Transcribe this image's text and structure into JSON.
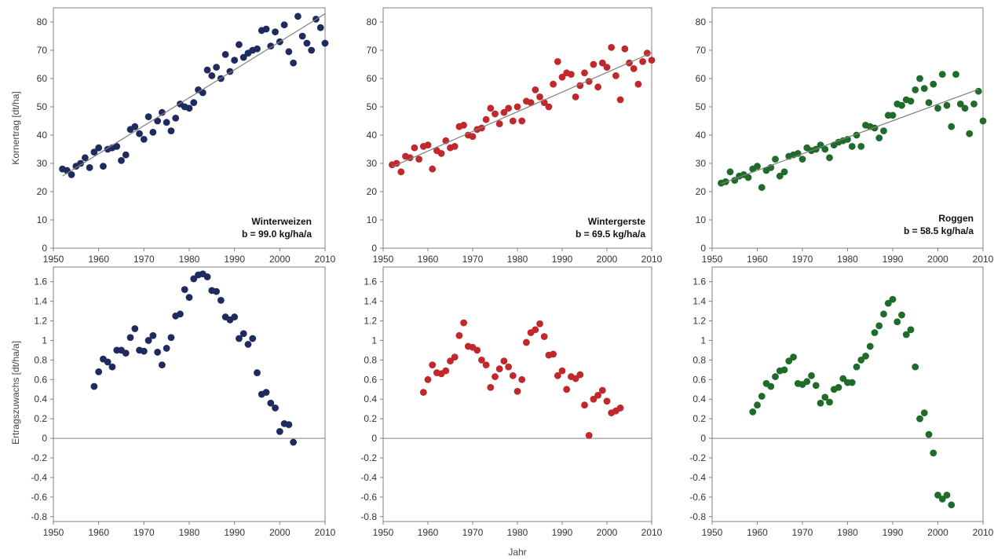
{
  "figure": {
    "ylabel_top": "Kornertrag [dt/ha]",
    "ylabel_bottom": "Ertragszuwachs [dt/ha/a]",
    "xlabel": "Jahr"
  },
  "colors": {
    "winterweizen": "#1f2a5e",
    "wintergerste": "#c0282b",
    "roggen": "#1e6b2a",
    "trend": "#7f7f7f",
    "axis": "#808080"
  },
  "chart_data": [
    {
      "id": "ww-yield",
      "type": "scatter",
      "series_label": "Winterweizen",
      "slope_label": "b = 99.0 kg/ha/a",
      "xlim": [
        1950,
        2010
      ],
      "ylim": [
        0,
        85
      ],
      "xticks": [
        1950,
        1960,
        1970,
        1980,
        1990,
        2000,
        2010
      ],
      "yticks": [
        0,
        10,
        20,
        30,
        40,
        50,
        60,
        70,
        80
      ],
      "trend": [
        [
          1952,
          25.5
        ],
        [
          2010,
          82.9
        ]
      ],
      "points": [
        [
          1952,
          28
        ],
        [
          1953,
          27.5
        ],
        [
          1954,
          26
        ],
        [
          1955,
          29
        ],
        [
          1956,
          30
        ],
        [
          1957,
          32
        ],
        [
          1958,
          28.5
        ],
        [
          1959,
          34
        ],
        [
          1960,
          35.5
        ],
        [
          1961,
          29
        ],
        [
          1962,
          35
        ],
        [
          1963,
          35.5
        ],
        [
          1964,
          36
        ],
        [
          1965,
          31
        ],
        [
          1966,
          33
        ],
        [
          1967,
          42
        ],
        [
          1968,
          43
        ],
        [
          1969,
          40.5
        ],
        [
          1970,
          38.5
        ],
        [
          1971,
          46.5
        ],
        [
          1972,
          41
        ],
        [
          1973,
          45
        ],
        [
          1974,
          48
        ],
        [
          1975,
          44.5
        ],
        [
          1976,
          41.5
        ],
        [
          1977,
          46
        ],
        [
          1978,
          51
        ],
        [
          1979,
          50
        ],
        [
          1980,
          49.5
        ],
        [
          1981,
          51.5
        ],
        [
          1982,
          56
        ],
        [
          1983,
          55
        ],
        [
          1984,
          63
        ],
        [
          1985,
          61
        ],
        [
          1986,
          64
        ],
        [
          1987,
          60
        ],
        [
          1988,
          68.5
        ],
        [
          1989,
          62.5
        ],
        [
          1990,
          66.5
        ],
        [
          1991,
          72
        ],
        [
          1992,
          67.5
        ],
        [
          1993,
          69
        ],
        [
          1994,
          70
        ],
        [
          1995,
          70.5
        ],
        [
          1996,
          77
        ],
        [
          1997,
          77.5
        ],
        [
          1998,
          71.5
        ],
        [
          1999,
          76.5
        ],
        [
          2000,
          73
        ],
        [
          2001,
          79
        ],
        [
          2002,
          69.5
        ],
        [
          2003,
          65.5
        ],
        [
          2004,
          82
        ],
        [
          2005,
          75
        ],
        [
          2006,
          72.5
        ],
        [
          2007,
          70
        ],
        [
          2008,
          81
        ],
        [
          2009,
          78
        ],
        [
          2010,
          72.5
        ]
      ]
    },
    {
      "id": "wg-yield",
      "type": "scatter",
      "series_label": "Wintergerste",
      "slope_label": "b = 69.5 kg/ha/a",
      "xlim": [
        1950,
        2010
      ],
      "ylim": [
        0,
        85
      ],
      "xticks": [
        1950,
        1960,
        1970,
        1980,
        1990,
        2000,
        2010
      ],
      "yticks": [
        0,
        10,
        20,
        30,
        40,
        50,
        60,
        70,
        80
      ],
      "trend": [
        [
          1952,
          28.8
        ],
        [
          2010,
          69.1
        ]
      ],
      "points": [
        [
          1952,
          29.5
        ],
        [
          1953,
          30
        ],
        [
          1954,
          27
        ],
        [
          1955,
          32.5
        ],
        [
          1956,
          32
        ],
        [
          1957,
          35.5
        ],
        [
          1958,
          31.5
        ],
        [
          1959,
          36
        ],
        [
          1960,
          36.5
        ],
        [
          1961,
          28
        ],
        [
          1962,
          34.5
        ],
        [
          1963,
          33.5
        ],
        [
          1964,
          38
        ],
        [
          1965,
          35.5
        ],
        [
          1966,
          36
        ],
        [
          1967,
          43
        ],
        [
          1968,
          43.5
        ],
        [
          1969,
          40
        ],
        [
          1970,
          39.5
        ],
        [
          1971,
          42
        ],
        [
          1972,
          42.5
        ],
        [
          1973,
          45.5
        ],
        [
          1974,
          49.5
        ],
        [
          1975,
          47.5
        ],
        [
          1976,
          44
        ],
        [
          1977,
          48
        ],
        [
          1978,
          49.5
        ],
        [
          1979,
          45
        ],
        [
          1980,
          50
        ],
        [
          1981,
          45
        ],
        [
          1982,
          52
        ],
        [
          1983,
          51.5
        ],
        [
          1984,
          56
        ],
        [
          1985,
          53.5
        ],
        [
          1986,
          51.5
        ],
        [
          1987,
          50
        ],
        [
          1988,
          58
        ],
        [
          1989,
          66
        ],
        [
          1990,
          60.5
        ],
        [
          1991,
          62
        ],
        [
          1992,
          61.5
        ],
        [
          1993,
          53.5
        ],
        [
          1994,
          57.5
        ],
        [
          1995,
          62
        ],
        [
          1996,
          59
        ],
        [
          1997,
          65
        ],
        [
          1998,
          57
        ],
        [
          1999,
          65.5
        ],
        [
          2000,
          64
        ],
        [
          2001,
          71
        ],
        [
          2002,
          61
        ],
        [
          2003,
          52.5
        ],
        [
          2004,
          70.5
        ],
        [
          2005,
          65.5
        ],
        [
          2006,
          63.5
        ],
        [
          2007,
          58
        ],
        [
          2008,
          66
        ],
        [
          2009,
          69
        ],
        [
          2010,
          66.5
        ]
      ]
    },
    {
      "id": "ro-yield",
      "type": "scatter",
      "series_label": "Roggen",
      "slope_label": "b = 58.5 kg/ha/a",
      "xlim": [
        1950,
        2010
      ],
      "ylim": [
        0,
        85
      ],
      "xticks": [
        1950,
        1960,
        1970,
        1980,
        1990,
        2000,
        2010
      ],
      "yticks": [
        0,
        10,
        20,
        30,
        40,
        50,
        60,
        70,
        80
      ],
      "trend": [
        [
          1952,
          22.8
        ],
        [
          2009,
          56.2
        ]
      ],
      "points": [
        [
          1952,
          23
        ],
        [
          1953,
          23.5
        ],
        [
          1954,
          27
        ],
        [
          1955,
          24
        ],
        [
          1956,
          25.5
        ],
        [
          1957,
          26
        ],
        [
          1958,
          25
        ],
        [
          1959,
          28
        ],
        [
          1960,
          29
        ],
        [
          1961,
          21.5
        ],
        [
          1962,
          27.5
        ],
        [
          1963,
          28.5
        ],
        [
          1964,
          31.5
        ],
        [
          1965,
          25.5
        ],
        [
          1966,
          27
        ],
        [
          1967,
          32.5
        ],
        [
          1968,
          33
        ],
        [
          1969,
          33.5
        ],
        [
          1970,
          31.5
        ],
        [
          1971,
          35.5
        ],
        [
          1972,
          34.5
        ],
        [
          1973,
          35
        ],
        [
          1974,
          36.5
        ],
        [
          1975,
          35
        ],
        [
          1976,
          32
        ],
        [
          1977,
          36.5
        ],
        [
          1978,
          37.5
        ],
        [
          1979,
          38
        ],
        [
          1980,
          38.5
        ],
        [
          1981,
          36
        ],
        [
          1982,
          40
        ],
        [
          1983,
          36
        ],
        [
          1984,
          43.5
        ],
        [
          1985,
          43
        ],
        [
          1986,
          42.5
        ],
        [
          1987,
          39
        ],
        [
          1988,
          41.5
        ],
        [
          1989,
          47
        ],
        [
          1990,
          47
        ],
        [
          1991,
          51
        ],
        [
          1992,
          50.5
        ],
        [
          1993,
          52.5
        ],
        [
          1994,
          52
        ],
        [
          1995,
          56
        ],
        [
          1996,
          60
        ],
        [
          1997,
          56.5
        ],
        [
          1998,
          51.5
        ],
        [
          1999,
          58
        ],
        [
          2000,
          49.5
        ],
        [
          2001,
          61.5
        ],
        [
          2002,
          50.5
        ],
        [
          2003,
          43
        ],
        [
          2004,
          61.5
        ],
        [
          2005,
          51
        ],
        [
          2006,
          49.5
        ],
        [
          2007,
          40.5
        ],
        [
          2008,
          51
        ],
        [
          2009,
          55.5
        ],
        [
          2010,
          45
        ]
      ]
    },
    {
      "id": "ww-growth",
      "type": "scatter",
      "xlim": [
        1950,
        2010
      ],
      "ylim": [
        -0.85,
        1.75
      ],
      "xticks": [
        1950,
        1960,
        1970,
        1980,
        1990,
        2000,
        2010
      ],
      "yticks": [
        -0.8,
        -0.6,
        -0.4,
        -0.2,
        0,
        0.2,
        0.4,
        0.6,
        0.8,
        1,
        1.2,
        1.4,
        1.6
      ],
      "points": [
        [
          1959,
          0.53
        ],
        [
          1960,
          0.68
        ],
        [
          1961,
          0.81
        ],
        [
          1962,
          0.78
        ],
        [
          1963,
          0.73
        ],
        [
          1964,
          0.9
        ],
        [
          1965,
          0.9
        ],
        [
          1966,
          0.87
        ],
        [
          1967,
          1.03
        ],
        [
          1968,
          1.12
        ],
        [
          1969,
          0.9
        ],
        [
          1970,
          0.89
        ],
        [
          1971,
          1
        ],
        [
          1972,
          1.05
        ],
        [
          1973,
          0.88
        ],
        [
          1974,
          0.75
        ],
        [
          1975,
          0.92
        ],
        [
          1976,
          1.03
        ],
        [
          1977,
          1.25
        ],
        [
          1978,
          1.27
        ],
        [
          1979,
          1.52
        ],
        [
          1980,
          1.44
        ],
        [
          1981,
          1.63
        ],
        [
          1982,
          1.67
        ],
        [
          1983,
          1.68
        ],
        [
          1984,
          1.65
        ],
        [
          1985,
          1.51
        ],
        [
          1986,
          1.5
        ],
        [
          1987,
          1.41
        ],
        [
          1988,
          1.24
        ],
        [
          1989,
          1.21
        ],
        [
          1990,
          1.24
        ],
        [
          1991,
          1.02
        ],
        [
          1992,
          1.07
        ],
        [
          1993,
          0.96
        ],
        [
          1994,
          1.02
        ],
        [
          1995,
          0.67
        ],
        [
          1996,
          0.45
        ],
        [
          1997,
          0.47
        ],
        [
          1998,
          0.36
        ],
        [
          1999,
          0.31
        ],
        [
          2000,
          0.07
        ],
        [
          2001,
          0.15
        ],
        [
          2002,
          0.14
        ],
        [
          2003,
          -0.04
        ]
      ]
    },
    {
      "id": "wg-growth",
      "type": "scatter",
      "xlim": [
        1950,
        2010
      ],
      "ylim": [
        -0.85,
        1.75
      ],
      "xticks": [
        1950,
        1960,
        1970,
        1980,
        1990,
        2000,
        2010
      ],
      "yticks": [
        -0.8,
        -0.6,
        -0.4,
        -0.2,
        0,
        0.2,
        0.4,
        0.6,
        0.8,
        1,
        1.2,
        1.4,
        1.6
      ],
      "points": [
        [
          1959,
          0.47
        ],
        [
          1960,
          0.6
        ],
        [
          1961,
          0.75
        ],
        [
          1962,
          0.67
        ],
        [
          1963,
          0.66
        ],
        [
          1964,
          0.69
        ],
        [
          1965,
          0.79
        ],
        [
          1966,
          0.83
        ],
        [
          1967,
          1.05
        ],
        [
          1968,
          1.18
        ],
        [
          1969,
          0.94
        ],
        [
          1970,
          0.93
        ],
        [
          1971,
          0.9
        ],
        [
          1972,
          0.8
        ],
        [
          1973,
          0.75
        ],
        [
          1974,
          0.52
        ],
        [
          1975,
          0.63
        ],
        [
          1976,
          0.71
        ],
        [
          1977,
          0.79
        ],
        [
          1978,
          0.73
        ],
        [
          1979,
          0.64
        ],
        [
          1980,
          0.48
        ],
        [
          1981,
          0.6
        ],
        [
          1982,
          0.98
        ],
        [
          1983,
          1.08
        ],
        [
          1984,
          1.11
        ],
        [
          1985,
          1.17
        ],
        [
          1986,
          1.04
        ],
        [
          1987,
          0.85
        ],
        [
          1988,
          0.86
        ],
        [
          1989,
          0.64
        ],
        [
          1990,
          0.69
        ],
        [
          1991,
          0.5
        ],
        [
          1992,
          0.63
        ],
        [
          1993,
          0.61
        ],
        [
          1994,
          0.65
        ],
        [
          1995,
          0.34
        ],
        [
          1996,
          0.03
        ],
        [
          1997,
          0.4
        ],
        [
          1998,
          0.44
        ],
        [
          1999,
          0.49
        ],
        [
          2000,
          0.38
        ],
        [
          2001,
          0.26
        ],
        [
          2002,
          0.28
        ],
        [
          2003,
          0.31
        ]
      ]
    },
    {
      "id": "ro-growth",
      "type": "scatter",
      "xlim": [
        1950,
        2010
      ],
      "ylim": [
        -0.85,
        1.75
      ],
      "xticks": [
        1950,
        1960,
        1970,
        1980,
        1990,
        2000,
        2010
      ],
      "yticks": [
        -0.8,
        -0.6,
        -0.4,
        -0.2,
        0,
        0.2,
        0.4,
        0.6,
        0.8,
        1,
        1.2,
        1.4,
        1.6
      ],
      "points": [
        [
          1959,
          0.27
        ],
        [
          1960,
          0.34
        ],
        [
          1961,
          0.43
        ],
        [
          1962,
          0.56
        ],
        [
          1963,
          0.53
        ],
        [
          1964,
          0.63
        ],
        [
          1965,
          0.69
        ],
        [
          1966,
          0.7
        ],
        [
          1967,
          0.79
        ],
        [
          1968,
          0.83
        ],
        [
          1969,
          0.56
        ],
        [
          1970,
          0.55
        ],
        [
          1971,
          0.58
        ],
        [
          1972,
          0.64
        ],
        [
          1973,
          0.54
        ],
        [
          1974,
          0.36
        ],
        [
          1975,
          0.42
        ],
        [
          1976,
          0.37
        ],
        [
          1977,
          0.5
        ],
        [
          1978,
          0.52
        ],
        [
          1979,
          0.61
        ],
        [
          1980,
          0.57
        ],
        [
          1981,
          0.57
        ],
        [
          1982,
          0.73
        ],
        [
          1983,
          0.8
        ],
        [
          1984,
          0.84
        ],
        [
          1985,
          0.94
        ],
        [
          1986,
          1.08
        ],
        [
          1987,
          1.15
        ],
        [
          1988,
          1.27
        ],
        [
          1989,
          1.38
        ],
        [
          1990,
          1.42
        ],
        [
          1991,
          1.19
        ],
        [
          1992,
          1.26
        ],
        [
          1993,
          1.06
        ],
        [
          1994,
          1.11
        ],
        [
          1995,
          0.73
        ],
        [
          1996,
          0.2
        ],
        [
          1997,
          0.26
        ],
        [
          1998,
          0.04
        ],
        [
          1999,
          -0.15
        ],
        [
          2000,
          -0.58
        ],
        [
          2001,
          -0.62
        ],
        [
          2002,
          -0.58
        ],
        [
          2003,
          -0.68
        ]
      ]
    }
  ]
}
